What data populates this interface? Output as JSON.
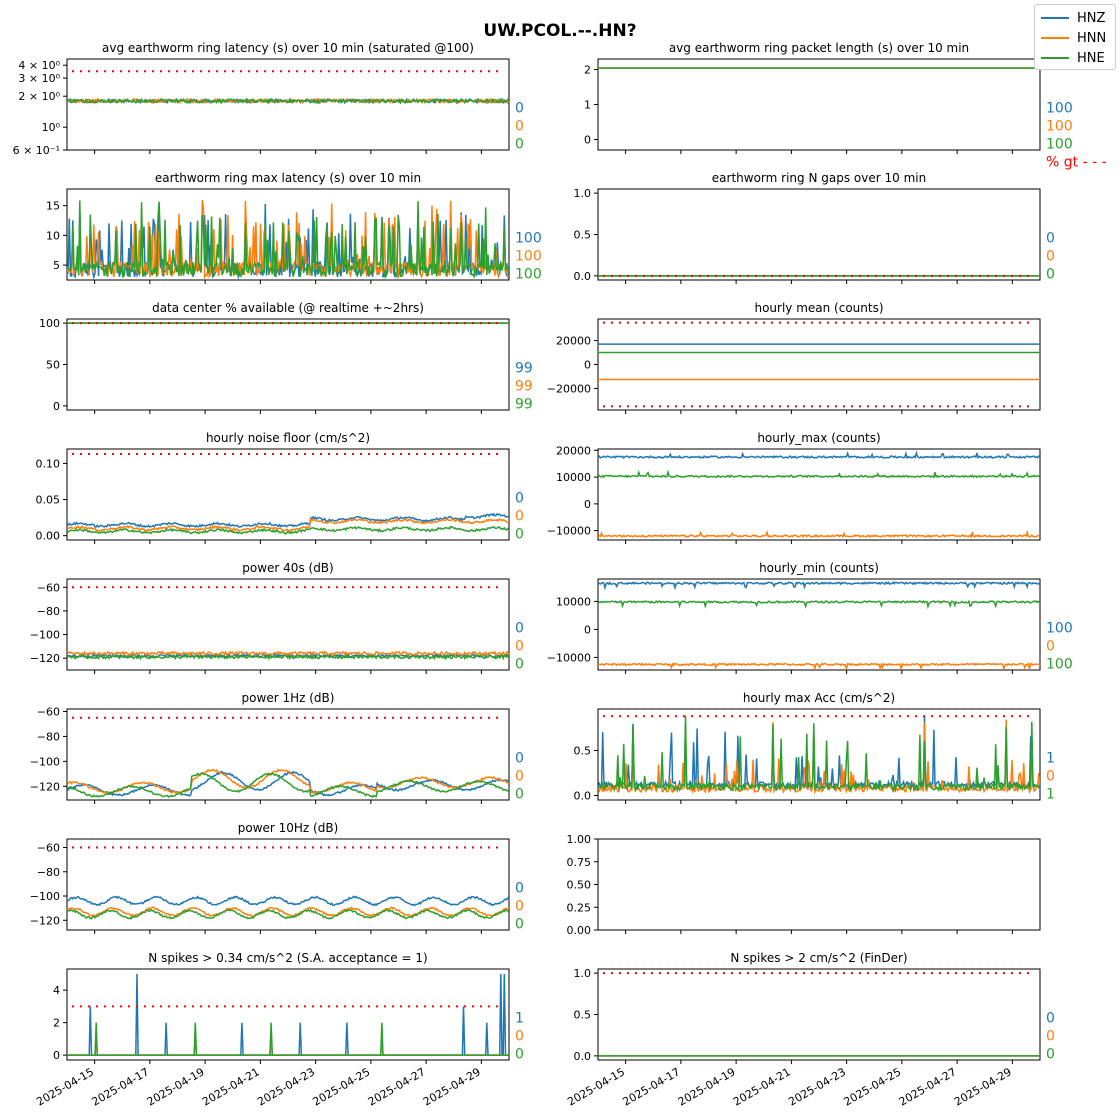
{
  "figure": {
    "title": "UW.PCOL.--.HN?"
  },
  "colors": {
    "HNZ": "#1f77b4",
    "HNN": "#ff7f0e",
    "HNE": "#2ca02c",
    "threshold": "#ff0000",
    "axes": "#000000",
    "bg": "#ffffff"
  },
  "legend": [
    {
      "name": "HNZ",
      "color": "#1f77b4"
    },
    {
      "name": "HNN",
      "color": "#ff7f0e"
    },
    {
      "name": "HNE",
      "color": "#2ca02c"
    }
  ],
  "x_axis": {
    "start": "2025-04-14",
    "end": "2025-04-30",
    "ticks": [
      "2025-04-15",
      "2025-04-17",
      "2025-04-19",
      "2025-04-21",
      "2025-04-23",
      "2025-04-25",
      "2025-04-27",
      "2025-04-29"
    ]
  },
  "chart_data": [
    {
      "id": "p1",
      "type": "line",
      "title": "avg earthworm ring latency (s)   over 10 min (saturated @100)",
      "yscale": "log",
      "ylim": [
        0.6,
        4.6
      ],
      "yticks": [
        0.6,
        1,
        2,
        3,
        4
      ],
      "yticklabels": [
        "6 × 10⁻¹",
        "10⁰",
        "2 × 10⁰",
        "3 × 10⁰",
        "4 × 10⁰"
      ],
      "threshold": 3.5,
      "series_levels": {
        "HNZ": 1.8,
        "HNN": 1.8,
        "HNE": 1.8
      },
      "pattern": "flat-noise",
      "right_labels": [
        "0",
        "0",
        "0"
      ]
    },
    {
      "id": "p2",
      "type": "line",
      "title": "avg earthworm ring packet length (s)   over 10 min",
      "ylim": [
        -0.3,
        2.3
      ],
      "yticks": [
        0,
        1,
        2
      ],
      "yticklabels": [
        "0",
        "1",
        "2"
      ],
      "threshold": null,
      "series_levels": {
        "HNZ": 2.04,
        "HNN": 2.04,
        "HNE": 2.04
      },
      "pattern": "flat",
      "right_labels": [
        "100",
        "100",
        "100"
      ],
      "extra_label": "% gt - - -"
    },
    {
      "id": "p3",
      "type": "line",
      "title": "earthworm ring max latency (s)   over 10 min",
      "ylim": [
        2.5,
        17.8
      ],
      "yticks": [
        5,
        10,
        15
      ],
      "yticklabels": [
        "5",
        "10",
        "15"
      ],
      "threshold": null,
      "series_levels": {
        "HNZ": 4.5,
        "HNN": 4.5,
        "HNE": 4.5
      },
      "pattern": "spiky-latency",
      "right_labels": [
        "100",
        "100",
        "100"
      ]
    },
    {
      "id": "p4",
      "type": "line",
      "title": "earthworm ring N gaps   over 10 min",
      "ylim": [
        -0.05,
        1.05
      ],
      "yticks": [
        0,
        0.5,
        1
      ],
      "yticklabels": [
        "0.0",
        "0.5",
        "1.0"
      ],
      "threshold": 0,
      "series_levels": {
        "HNZ": 0,
        "HNN": 0,
        "HNE": 0
      },
      "pattern": "flat",
      "right_labels": [
        "0",
        "0",
        "0"
      ]
    },
    {
      "id": "p5",
      "type": "line",
      "title": "data center % available (@ realtime +~2hrs)",
      "ylim": [
        -5,
        105
      ],
      "yticks": [
        0,
        50,
        100
      ],
      "yticklabels": [
        "0",
        "50",
        "100"
      ],
      "threshold": 100,
      "series_levels": {
        "HNZ": 100,
        "HNN": 100,
        "HNE": 100
      },
      "pattern": "flat",
      "right_labels": [
        "99",
        "99",
        "99"
      ]
    },
    {
      "id": "p6",
      "type": "line",
      "title": "hourly mean (counts)",
      "ylim": [
        -38000,
        38000
      ],
      "yticks": [
        -20000,
        0,
        20000
      ],
      "yticklabels": [
        "−20000",
        "0",
        "20000"
      ],
      "threshold": [
        35000,
        -35000
      ],
      "series_levels": {
        "HNZ": 17000,
        "HNN": -12500,
        "HNE": 10000
      },
      "pattern": "flat",
      "right_labels": []
    },
    {
      "id": "p7",
      "type": "line",
      "title": "hourly noise floor (cm/s^2)",
      "ylim": [
        -0.006,
        0.12
      ],
      "yticks": [
        0,
        0.05,
        0.1
      ],
      "yticklabels": [
        "0.00",
        "0.05",
        "0.10"
      ],
      "threshold": 0.113,
      "series_levels": {
        "HNZ": 0.015,
        "HNN": 0.01,
        "HNE": 0.006
      },
      "pattern": "noise-floor",
      "right_labels": [
        "0",
        "0",
        "0"
      ]
    },
    {
      "id": "p8",
      "type": "line",
      "title": "hourly_max (counts)",
      "ylim": [
        -13500,
        20500
      ],
      "yticks": [
        -10000,
        0,
        10000,
        20000
      ],
      "yticklabels": [
        "−10000",
        "0",
        "10000",
        "20000"
      ],
      "threshold": null,
      "series_levels": {
        "HNZ": 17500,
        "HNN": -12000,
        "HNE": 10300
      },
      "pattern": "hourly-max",
      "right_labels": []
    },
    {
      "id": "p9",
      "type": "line",
      "title": "power 40s (dB)",
      "ylim": [
        -130,
        -53
      ],
      "yticks": [
        -120,
        -100,
        -80,
        -60
      ],
      "yticklabels": [
        "−120",
        "−100",
        "−80",
        "−60"
      ],
      "threshold": -60,
      "series_levels": {
        "HNZ": -118,
        "HNN": -116,
        "HNE": -119
      },
      "pattern": "flat-noise",
      "right_labels": [
        "0",
        "0",
        "0"
      ]
    },
    {
      "id": "p10",
      "type": "line",
      "title": "hourly_min (counts)",
      "ylim": [
        -14500,
        18000
      ],
      "yticks": [
        -10000,
        0,
        10000
      ],
      "yticklabels": [
        "−10000",
        "0",
        "10000"
      ],
      "threshold": null,
      "series_levels": {
        "HNZ": 16500,
        "HNN": -12500,
        "HNE": 9800
      },
      "pattern": "hourly-min",
      "right_labels": [
        "100",
        "0",
        "100"
      ]
    },
    {
      "id": "p11",
      "type": "line",
      "title": "power 1Hz (dB)",
      "ylim": [
        -131,
        -58
      ],
      "yticks": [
        -120,
        -100,
        -80,
        -60
      ],
      "yticklabels": [
        "−120",
        "−100",
        "−80",
        "−60"
      ],
      "threshold": -65,
      "series_levels": {
        "HNZ": -123,
        "HNN": -121,
        "HNE": -124
      },
      "pattern": "power1hz",
      "right_labels": [
        "0",
        "0",
        "0"
      ]
    },
    {
      "id": "p12",
      "type": "line",
      "title": "hourly max Acc (cm/s^2)",
      "ylim": [
        -0.05,
        0.96
      ],
      "yticks": [
        0,
        0.5
      ],
      "yticklabels": [
        "0.0",
        "0.5"
      ],
      "threshold": 0.88,
      "series_levels": {
        "HNZ": 0.08,
        "HNN": 0.04,
        "HNE": 0.06
      },
      "pattern": "spiky-acc",
      "right_labels": [
        "1",
        "0",
        "1"
      ]
    },
    {
      "id": "p13",
      "type": "line",
      "title": "power 10Hz (dB)",
      "ylim": [
        -128,
        -53
      ],
      "yticks": [
        -120,
        -100,
        -80,
        -60
      ],
      "yticklabels": [
        "−120",
        "−100",
        "−80",
        "−60"
      ],
      "threshold": -60,
      "series_levels": {
        "HNZ": -104,
        "HNN": -113,
        "HNE": -115
      },
      "pattern": "power10hz",
      "right_labels": [
        "0",
        "0",
        "0"
      ]
    },
    {
      "id": "p14",
      "type": "empty",
      "title": "",
      "ylim": [
        0,
        1
      ],
      "yticks": [
        0,
        0.25,
        0.5,
        0.75,
        1
      ],
      "yticklabels": [
        "0.00",
        "0.25",
        "0.50",
        "0.75",
        "1.00"
      ],
      "threshold": null,
      "right_labels": []
    },
    {
      "id": "p15",
      "type": "line",
      "title": "N spikes > 0.34 cm/s^2 (S.A. acceptance = 1)",
      "ylim": [
        -0.3,
        5.3
      ],
      "yticks": [
        0,
        2,
        4
      ],
      "yticklabels": [
        "0",
        "2",
        "4"
      ],
      "threshold": 3,
      "series_levels": {
        "HNZ": 0,
        "HNN": 0,
        "HNE": 0
      },
      "pattern": "spikes-count",
      "right_labels": [
        "1",
        "0",
        "0"
      ]
    },
    {
      "id": "p16",
      "type": "line",
      "title": "N spikes > 2 cm/s^2 (FinDer)",
      "ylim": [
        -0.05,
        1.05
      ],
      "yticks": [
        0,
        0.5,
        1
      ],
      "yticklabels": [
        "0.0",
        "0.5",
        "1.0"
      ],
      "threshold": 1,
      "series_levels": {
        "HNZ": 0,
        "HNN": 0,
        "HNE": 0
      },
      "pattern": "flat",
      "right_labels": [
        "0",
        "0",
        "0"
      ]
    }
  ]
}
